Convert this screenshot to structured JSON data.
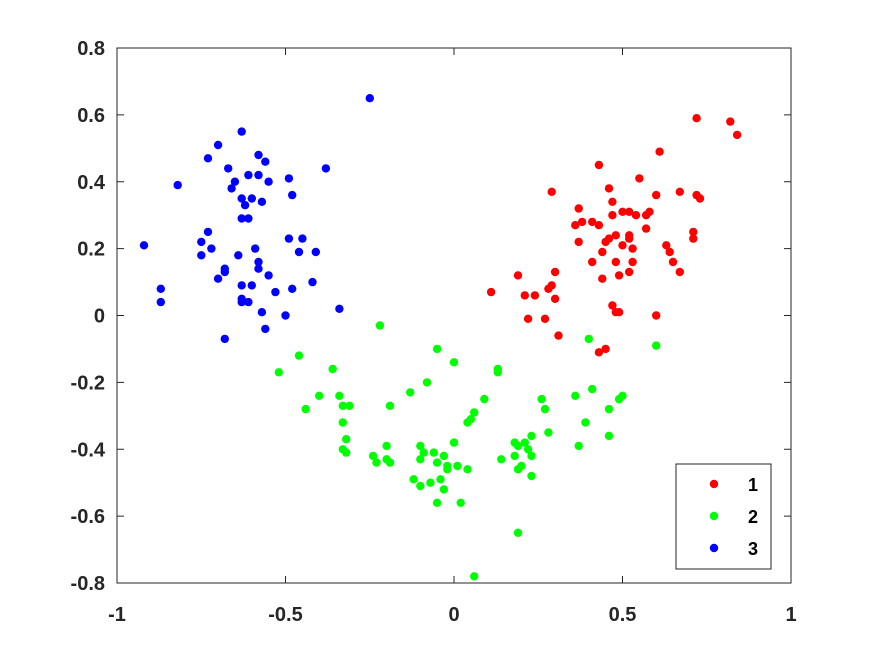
{
  "chart_data": {
    "type": "scatter",
    "xlim": [
      -1,
      1
    ],
    "ylim": [
      -0.8,
      0.8
    ],
    "x_ticks": [
      "-1",
      "-0.5",
      "0",
      "0.5",
      "1"
    ],
    "y_ticks": [
      "0.8",
      "0.6",
      "0.4",
      "0.2",
      "0",
      "-0.2",
      "-0.4",
      "-0.6",
      "-0.8"
    ],
    "grid": false,
    "legend_position": "bottom-right",
    "series": [
      {
        "name": "1",
        "color": "#ff0000",
        "points": [
          [
            0.72,
            0.59
          ],
          [
            0.82,
            0.58
          ],
          [
            0.84,
            0.54
          ],
          [
            0.61,
            0.49
          ],
          [
            0.43,
            0.45
          ],
          [
            0.55,
            0.41
          ],
          [
            0.46,
            0.38
          ],
          [
            0.6,
            0.36
          ],
          [
            0.67,
            0.37
          ],
          [
            0.72,
            0.36
          ],
          [
            0.73,
            0.35
          ],
          [
            0.29,
            0.37
          ],
          [
            0.37,
            0.32
          ],
          [
            0.47,
            0.34
          ],
          [
            0.52,
            0.31
          ],
          [
            0.5,
            0.31
          ],
          [
            0.54,
            0.3
          ],
          [
            0.57,
            0.3
          ],
          [
            0.58,
            0.31
          ],
          [
            0.47,
            0.3
          ],
          [
            0.38,
            0.28
          ],
          [
            0.41,
            0.28
          ],
          [
            0.43,
            0.27
          ],
          [
            0.36,
            0.27
          ],
          [
            0.57,
            0.26
          ],
          [
            0.48,
            0.24
          ],
          [
            0.52,
            0.24
          ],
          [
            0.46,
            0.23
          ],
          [
            0.52,
            0.23
          ],
          [
            0.71,
            0.25
          ],
          [
            0.71,
            0.23
          ],
          [
            0.37,
            0.22
          ],
          [
            0.45,
            0.22
          ],
          [
            0.5,
            0.21
          ],
          [
            0.44,
            0.19
          ],
          [
            0.53,
            0.2
          ],
          [
            0.63,
            0.21
          ],
          [
            0.64,
            0.19
          ],
          [
            0.41,
            0.16
          ],
          [
            0.48,
            0.16
          ],
          [
            0.53,
            0.16
          ],
          [
            0.65,
            0.16
          ],
          [
            0.67,
            0.13
          ],
          [
            0.3,
            0.13
          ],
          [
            0.19,
            0.12
          ],
          [
            0.49,
            0.12
          ],
          [
            0.44,
            0.11
          ],
          [
            0.52,
            0.13
          ],
          [
            0.29,
            0.09
          ],
          [
            0.28,
            0.08
          ],
          [
            0.21,
            0.06
          ],
          [
            0.24,
            0.06
          ],
          [
            0.3,
            0.05
          ],
          [
            0.11,
            0.07
          ],
          [
            0.47,
            0.03
          ],
          [
            0.48,
            0.01
          ],
          [
            0.49,
            0.01
          ],
          [
            0.22,
            -0.01
          ],
          [
            0.27,
            -0.01
          ],
          [
            0.6,
            0.0
          ],
          [
            0.31,
            -0.06
          ],
          [
            0.45,
            -0.1
          ],
          [
            0.43,
            -0.11
          ]
        ]
      },
      {
        "name": "2",
        "color": "#00ff00",
        "points": [
          [
            -0.22,
            -0.03
          ],
          [
            0.4,
            -0.07
          ],
          [
            0.6,
            -0.09
          ],
          [
            -0.05,
            -0.1
          ],
          [
            -0.46,
            -0.12
          ],
          [
            0.0,
            -0.14
          ],
          [
            -0.36,
            -0.16
          ],
          [
            0.13,
            -0.16
          ],
          [
            0.13,
            -0.17
          ],
          [
            -0.52,
            -0.17
          ],
          [
            -0.08,
            -0.2
          ],
          [
            0.41,
            -0.22
          ],
          [
            -0.13,
            -0.23
          ],
          [
            -0.34,
            -0.24
          ],
          [
            0.36,
            -0.24
          ],
          [
            -0.4,
            -0.24
          ],
          [
            0.5,
            -0.24
          ],
          [
            0.49,
            -0.25
          ],
          [
            0.09,
            -0.25
          ],
          [
            0.26,
            -0.25
          ],
          [
            -0.33,
            -0.27
          ],
          [
            -0.31,
            -0.27
          ],
          [
            -0.19,
            -0.27
          ],
          [
            -0.44,
            -0.28
          ],
          [
            0.46,
            -0.28
          ],
          [
            0.27,
            -0.28
          ],
          [
            0.06,
            -0.29
          ],
          [
            0.05,
            -0.31
          ],
          [
            0.04,
            -0.32
          ],
          [
            0.39,
            -0.32
          ],
          [
            -0.33,
            -0.32
          ],
          [
            0.28,
            -0.35
          ],
          [
            0.23,
            -0.36
          ],
          [
            0.46,
            -0.36
          ],
          [
            -0.32,
            -0.37
          ],
          [
            0.18,
            -0.38
          ],
          [
            0.21,
            -0.38
          ],
          [
            0.19,
            -0.39
          ],
          [
            0.0,
            -0.38
          ],
          [
            -0.1,
            -0.39
          ],
          [
            0.37,
            -0.39
          ],
          [
            -0.2,
            -0.39
          ],
          [
            0.22,
            -0.4
          ],
          [
            -0.33,
            -0.4
          ],
          [
            -0.32,
            -0.41
          ],
          [
            -0.09,
            -0.41
          ],
          [
            -0.06,
            -0.41
          ],
          [
            -0.03,
            -0.42
          ],
          [
            0.23,
            -0.42
          ],
          [
            -0.24,
            -0.42
          ],
          [
            0.18,
            -0.42
          ],
          [
            -0.1,
            -0.43
          ],
          [
            -0.2,
            -0.43
          ],
          [
            0.14,
            -0.43
          ],
          [
            -0.05,
            -0.44
          ],
          [
            -0.23,
            -0.44
          ],
          [
            -0.19,
            -0.44
          ],
          [
            0.01,
            -0.45
          ],
          [
            -0.02,
            -0.45
          ],
          [
            0.2,
            -0.45
          ],
          [
            -0.02,
            -0.46
          ],
          [
            0.04,
            -0.46
          ],
          [
            0.19,
            -0.46
          ],
          [
            0.23,
            -0.48
          ],
          [
            -0.12,
            -0.49
          ],
          [
            -0.04,
            -0.49
          ],
          [
            -0.1,
            -0.51
          ],
          [
            -0.07,
            -0.5
          ],
          [
            -0.03,
            -0.52
          ],
          [
            0.02,
            -0.56
          ],
          [
            -0.05,
            -0.56
          ],
          [
            0.19,
            -0.65
          ],
          [
            0.06,
            -0.78
          ]
        ]
      },
      {
        "name": "3",
        "color": "#0000ff",
        "points": [
          [
            -0.25,
            0.65
          ],
          [
            -0.63,
            0.55
          ],
          [
            -0.7,
            0.51
          ],
          [
            -0.58,
            0.48
          ],
          [
            -0.56,
            0.46
          ],
          [
            -0.73,
            0.47
          ],
          [
            -0.38,
            0.44
          ],
          [
            -0.67,
            0.44
          ],
          [
            -0.61,
            0.42
          ],
          [
            -0.58,
            0.42
          ],
          [
            -0.49,
            0.41
          ],
          [
            -0.65,
            0.4
          ],
          [
            -0.55,
            0.4
          ],
          [
            -0.82,
            0.39
          ],
          [
            -0.66,
            0.38
          ],
          [
            -0.48,
            0.36
          ],
          [
            -0.63,
            0.35
          ],
          [
            -0.6,
            0.35
          ],
          [
            -0.57,
            0.34
          ],
          [
            -0.62,
            0.33
          ],
          [
            -0.63,
            0.29
          ],
          [
            -0.61,
            0.29
          ],
          [
            -0.73,
            0.25
          ],
          [
            -0.45,
            0.23
          ],
          [
            -0.49,
            0.23
          ],
          [
            -0.75,
            0.22
          ],
          [
            -0.72,
            0.2
          ],
          [
            -0.59,
            0.2
          ],
          [
            -0.92,
            0.21
          ],
          [
            -0.46,
            0.19
          ],
          [
            -0.41,
            0.19
          ],
          [
            -0.75,
            0.18
          ],
          [
            -0.64,
            0.18
          ],
          [
            -0.58,
            0.16
          ],
          [
            -0.58,
            0.14
          ],
          [
            -0.68,
            0.14
          ],
          [
            -0.68,
            0.13
          ],
          [
            -0.55,
            0.12
          ],
          [
            -0.7,
            0.11
          ],
          [
            -0.42,
            0.1
          ],
          [
            -0.63,
            0.09
          ],
          [
            -0.6,
            0.09
          ],
          [
            -0.48,
            0.08
          ],
          [
            -0.87,
            0.08
          ],
          [
            -0.53,
            0.07
          ],
          [
            -0.63,
            0.05
          ],
          [
            -0.63,
            0.04
          ],
          [
            -0.61,
            0.04
          ],
          [
            -0.87,
            0.04
          ],
          [
            -0.34,
            0.02
          ],
          [
            -0.57,
            0.01
          ],
          [
            -0.5,
            0.0
          ],
          [
            -0.56,
            -0.04
          ],
          [
            -0.68,
            -0.07
          ]
        ]
      }
    ]
  }
}
